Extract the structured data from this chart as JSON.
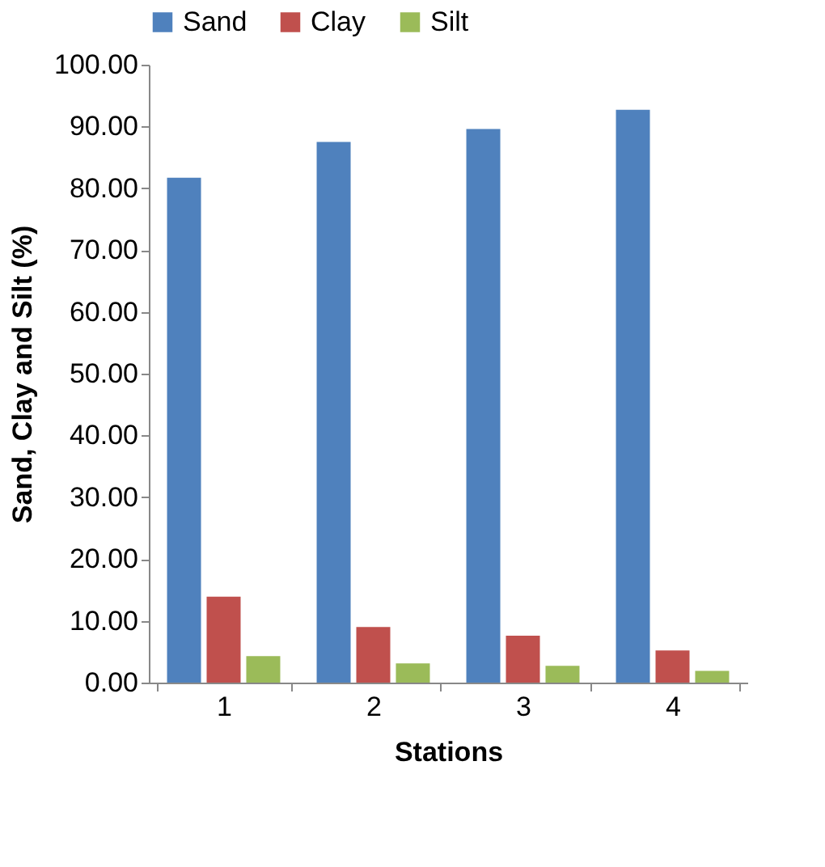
{
  "chart_data": {
    "type": "bar",
    "xlabel": "Stations",
    "ylabel": "Sand, Clay and Silt (%)",
    "categories": [
      "1",
      "2",
      "3",
      "4"
    ],
    "series": [
      {
        "name": "Sand",
        "color": "#4f81bd",
        "values": [
          81.7,
          87.5,
          89.6,
          92.7
        ]
      },
      {
        "name": "Clay",
        "color": "#c0504d",
        "values": [
          13.9,
          9.0,
          7.6,
          5.2
        ]
      },
      {
        "name": "Silt",
        "color": "#9bbb59",
        "values": [
          4.3,
          3.1,
          2.7,
          1.9
        ]
      }
    ],
    "ylim": [
      0,
      100
    ],
    "yticks": [
      {
        "value": 0,
        "label": "0.00"
      },
      {
        "value": 10,
        "label": "10.00"
      },
      {
        "value": 20,
        "label": "20.00"
      },
      {
        "value": 30,
        "label": "30.00"
      },
      {
        "value": 40,
        "label": "40.00"
      },
      {
        "value": 50,
        "label": "50.00"
      },
      {
        "value": 60,
        "label": "60.00"
      },
      {
        "value": 70,
        "label": "70.00"
      },
      {
        "value": 80,
        "label": "80.00"
      },
      {
        "value": 90,
        "label": "90.00"
      },
      {
        "value": 100,
        "label": "100.00"
      }
    ],
    "grid": false,
    "legend": "top"
  }
}
